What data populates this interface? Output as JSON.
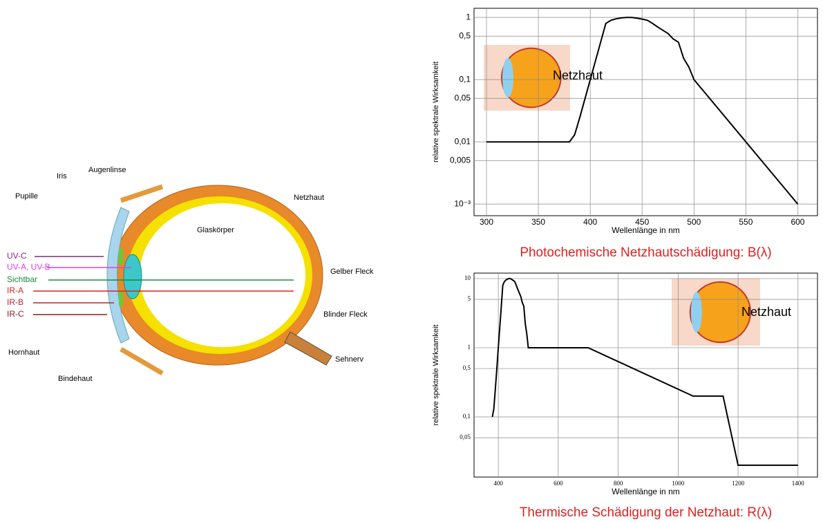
{
  "diagram": {
    "labels": [
      "Iris",
      "Augenlinse",
      "Pupille",
      "Netzhaut",
      "Glaskörper",
      "UV-C",
      "UV-A, UV-B",
      "Sichtbar",
      "IR-A",
      "IR-B",
      "IR-C",
      "Gelber Fleck",
      "Blinder Fleck",
      "Hornhaut",
      "Bindehaut",
      "Sehnerv"
    ]
  },
  "chart_data": [
    {
      "type": "line",
      "log_y": true,
      "grid": true,
      "color": "#000000",
      "ylabel": "relative spektrale Wirksamkeit",
      "xlabel": "Wellenlänge in nm",
      "caption": "Photochemische Netzhautschädigung:  B(λ)",
      "inset_label": "Netzhaut",
      "x": [
        300,
        380,
        385,
        390,
        395,
        400,
        405,
        410,
        415,
        420,
        425,
        430,
        435,
        440,
        445,
        450,
        455,
        460,
        465,
        470,
        475,
        480,
        485,
        490,
        495,
        500,
        550,
        600
      ],
      "values": [
        0.01,
        0.01,
        0.013,
        0.025,
        0.05,
        0.1,
        0.2,
        0.4,
        0.8,
        0.9,
        0.95,
        0.98,
        1,
        1,
        0.97,
        0.94,
        0.9,
        0.8,
        0.7,
        0.62,
        0.55,
        0.45,
        0.4,
        0.22,
        0.16,
        0.1,
        0.01,
        0.001
      ],
      "xlim": [
        288,
        619
      ],
      "xticks": [
        300,
        350,
        400,
        450,
        500,
        550,
        600
      ],
      "ylim": [
        0.00065,
        1.4
      ],
      "yticks": [
        1,
        {
          "value": 0.5,
          "label": "0,5"
        },
        {
          "value": 0.1,
          "label": "0,1"
        },
        {
          "value": 0.05,
          "label": "0,05"
        },
        {
          "value": 0.01,
          "label": "0,01"
        },
        {
          "value": 0.005,
          "label": "0,005"
        },
        {
          "value": 0.001,
          "label": "10⁻³"
        }
      ]
    },
    {
      "type": "line",
      "log_y": true,
      "grid": true,
      "color": "#000000",
      "ylabel": "relative spektrale Wirksamkeit",
      "xlabel": "Wellenlänge in nm",
      "caption": "Thermische Schädigung der Netzhaut:  R(λ)",
      "inset_label": "Netzhaut",
      "x": [
        380,
        385,
        390,
        395,
        400,
        405,
        410,
        415,
        420,
        425,
        430,
        435,
        440,
        445,
        450,
        455,
        460,
        465,
        470,
        475,
        480,
        485,
        490,
        495,
        500,
        700,
        1050,
        1150,
        1200,
        1400
      ],
      "values": [
        0.1,
        0.13,
        0.25,
        0.5,
        1,
        2,
        4,
        8,
        9,
        9.5,
        9.8,
        10,
        10,
        9.7,
        9.4,
        9,
        8,
        7,
        6.2,
        5.5,
        4.5,
        4,
        2.2,
        1.6,
        1,
        1,
        0.2,
        0.2,
        0.02,
        0.02
      ],
      "xlim": [
        319,
        1465
      ],
      "xticks": [
        400,
        600,
        800,
        1000,
        1200,
        1400
      ],
      "ylim": [
        0.0135,
        12
      ],
      "yticks": [
        10,
        5,
        1,
        {
          "value": 0.5,
          "label": "0,5"
        },
        {
          "value": 0.1,
          "label": "0,1"
        },
        {
          "value": 0.05,
          "label": "0,05"
        }
      ]
    }
  ]
}
